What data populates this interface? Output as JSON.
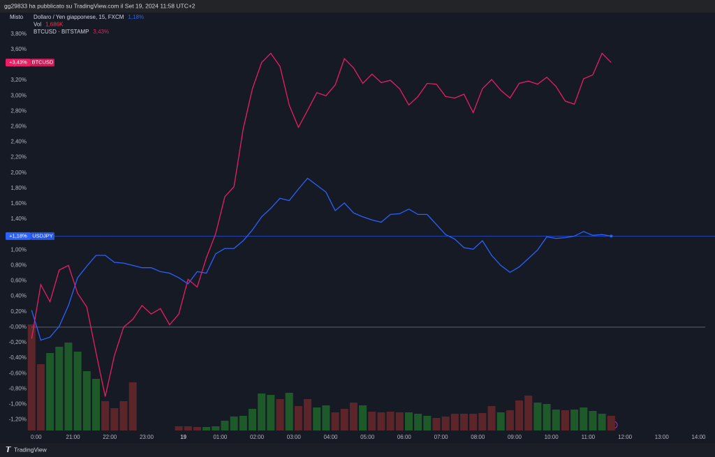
{
  "header": "gg29833 ha pubblicato su TradingView.com il Set 19, 2024 11:58 UTC+2",
  "footer": "TradingView",
  "chart_data": {
    "type": "line",
    "scale_mode": "Misto",
    "x": [
      -0.125,
      0.125,
      0.375,
      0.625,
      0.875,
      1.125,
      1.375,
      1.625,
      1.875,
      2.125,
      2.375,
      2.625,
      2.875,
      3.125,
      3.375,
      3.625,
      3.875,
      4.125,
      4.375,
      4.625,
      4.875,
      5.125,
      5.375,
      5.625,
      5.875,
      6.125,
      6.375,
      6.625,
      6.875,
      7.125,
      7.375,
      7.625,
      7.875,
      8.125,
      8.375,
      8.625,
      8.875,
      9.125,
      9.375,
      9.625,
      9.875,
      10.125,
      10.375,
      10.625,
      10.875,
      11.125,
      11.375,
      11.625,
      11.875,
      12.125,
      12.375,
      12.625,
      12.875,
      13.125,
      13.375,
      13.625,
      13.875,
      14.125,
      14.375,
      14.625,
      14.875,
      15.125,
      15.375,
      15.625
    ],
    "xlim": [
      -0.13,
      18.18
    ],
    "xticks": [
      {
        "value": 0,
        "label": "0:00"
      },
      {
        "value": 1,
        "label": "21:00"
      },
      {
        "value": 2,
        "label": "22:00"
      },
      {
        "value": 3,
        "label": "23:00"
      },
      {
        "value": 4,
        "label": "19"
      },
      {
        "value": 5,
        "label": "01:00"
      },
      {
        "value": 6,
        "label": "02:00"
      },
      {
        "value": 7,
        "label": "03:00"
      },
      {
        "value": 8,
        "label": "04:00"
      },
      {
        "value": 9,
        "label": "05:00"
      },
      {
        "value": 10,
        "label": "06:00"
      },
      {
        "value": 11,
        "label": "07:00"
      },
      {
        "value": 12,
        "label": "08:00"
      },
      {
        "value": 13,
        "label": "09:00"
      },
      {
        "value": 14,
        "label": "10:00"
      },
      {
        "value": 15,
        "label": "11:00"
      },
      {
        "value": 16,
        "label": "12:00"
      },
      {
        "value": 17,
        "label": "13:00"
      },
      {
        "value": 18,
        "label": "14:00"
      }
    ],
    "ylim": [
      -1.34,
      4.06
    ],
    "yticks": [
      {
        "value": 3.8,
        "label": "3,80%"
      },
      {
        "value": 3.6,
        "label": "3,60%"
      },
      {
        "value": 3.4,
        "label": "3,40%"
      },
      {
        "value": 3.2,
        "label": "3,20%"
      },
      {
        "value": 3.0,
        "label": "3,00%"
      },
      {
        "value": 2.8,
        "label": "2,80%"
      },
      {
        "value": 2.6,
        "label": "2,60%"
      },
      {
        "value": 2.4,
        "label": "2,40%"
      },
      {
        "value": 2.2,
        "label": "2,20%"
      },
      {
        "value": 2.0,
        "label": "2,00%"
      },
      {
        "value": 1.8,
        "label": "1,80%"
      },
      {
        "value": 1.6,
        "label": "1,60%"
      },
      {
        "value": 1.4,
        "label": "1,40%"
      },
      {
        "value": 1.0,
        "label": "1,00%"
      },
      {
        "value": 0.8,
        "label": "0,80%"
      },
      {
        "value": 0.6,
        "label": "0,60%"
      },
      {
        "value": 0.4,
        "label": "0,40%"
      },
      {
        "value": 0.2,
        "label": "0,20%"
      },
      {
        "value": 0,
        "label": "-0,00%"
      },
      {
        "value": -0.2,
        "label": "-0,20%"
      },
      {
        "value": -0.4,
        "label": "-0,40%"
      },
      {
        "value": -0.6,
        "label": "-0,60%"
      },
      {
        "value": -0.8,
        "label": "-0,80%"
      },
      {
        "value": -1.0,
        "label": "-1,00%"
      },
      {
        "value": -1.2,
        "label": "-1,20%"
      }
    ],
    "baseline": 0,
    "series": [
      {
        "name": "Dollaro / Yen giapponese, 15, FXCM",
        "legend_value": "1,18%",
        "tag": "USDJPY",
        "last_label": "+1,18%",
        "color": "#2962ff",
        "values": [
          0.22,
          -0.17,
          -0.13,
          0.01,
          0.28,
          0.64,
          0.79,
          0.93,
          0.93,
          0.84,
          0.83,
          0.8,
          0.77,
          0.77,
          0.72,
          0.7,
          0.64,
          0.56,
          0.72,
          0.7,
          0.95,
          1.02,
          1.02,
          1.12,
          1.26,
          1.43,
          1.54,
          1.67,
          1.64,
          1.79,
          1.93,
          1.84,
          1.75,
          1.51,
          1.61,
          1.48,
          1.43,
          1.39,
          1.36,
          1.46,
          1.47,
          1.53,
          1.46,
          1.46,
          1.33,
          1.2,
          1.14,
          1.03,
          1.01,
          1.12,
          0.93,
          0.8,
          0.71,
          0.78,
          0.89,
          1.0,
          1.17,
          1.15,
          1.16,
          1.18,
          1.24,
          1.19,
          1.2,
          1.18
        ]
      },
      {
        "name": "BTCUSD · BITSTAMP",
        "legend_value": "3,43%",
        "tag": "BTCUSD",
        "last_label": "+3,43%",
        "color": "#e91e63",
        "values": [
          -0.15,
          0.55,
          0.33,
          0.74,
          0.8,
          0.44,
          0.26,
          -0.33,
          -0.9,
          -0.37,
          0.0,
          0.1,
          0.28,
          0.17,
          0.24,
          0.03,
          0.17,
          0.62,
          0.52,
          0.9,
          1.21,
          1.69,
          1.82,
          2.57,
          3.09,
          3.43,
          3.55,
          3.38,
          2.88,
          2.59,
          2.81,
          3.04,
          3.0,
          3.14,
          3.48,
          3.36,
          3.16,
          3.28,
          3.17,
          3.2,
          3.09,
          2.88,
          2.99,
          3.16,
          3.15,
          2.99,
          2.97,
          3.02,
          2.78,
          3.09,
          3.21,
          3.07,
          2.97,
          3.16,
          3.19,
          3.15,
          3.24,
          3.12,
          2.93,
          2.89,
          3.22,
          3.27,
          3.55,
          3.43
        ]
      }
    ],
    "volume": {
      "name": "Vol",
      "legend_value": "1,686K",
      "legend_color": "#f23645",
      "vlim": [
        0,
        40000
      ],
      "values": [
        12160,
        7600,
        8880,
        9600,
        10080,
        9040,
        6800,
        5920,
        3360,
        2560,
        3360,
        5520,
        null,
        null,
        null,
        null,
        480,
        480,
        400,
        400,
        480,
        1120,
        1600,
        1680,
        2480,
        4240,
        4080,
        3600,
        4320,
        2800,
        3600,
        2640,
        2880,
        2080,
        2480,
        3200,
        2880,
        2160,
        2080,
        2160,
        2080,
        2080,
        1920,
        1680,
        1440,
        1600,
        1920,
        1920,
        1920,
        2000,
        2800,
        2080,
        2320,
        3440,
        4000,
        3200,
        3040,
        2400,
        2320,
        2400,
        2640,
        2240,
        1920,
        1686
      ],
      "colors": [
        "#5c2529",
        "#5c2529",
        "#1e5a29",
        "#1e5a29",
        "#1e5a29",
        "#1e5a29",
        "#1e5a29",
        "#1e5a29",
        "#5c2529",
        "#5c2529",
        "#5c2529",
        "#5c2529",
        null,
        null,
        null,
        null,
        "#5c2529",
        "#5c2529",
        "#5c2529",
        "#1e5a29",
        "#1e5a29",
        "#1e5a29",
        "#1e5a29",
        "#1e5a29",
        "#1e5a29",
        "#1e5a29",
        "#1e5a29",
        "#5c2529",
        "#1e5a29",
        "#5c2529",
        "#5c2529",
        "#1e5a29",
        "#1e5a29",
        "#5c2529",
        "#5c2529",
        "#5c2529",
        "#1e5a29",
        "#5c2529",
        "#5c2529",
        "#5c2529",
        "#5c2529",
        "#1e5a29",
        "#1e5a29",
        "#1e5a29",
        "#5c2529",
        "#5c2529",
        "#5c2529",
        "#5c2529",
        "#5c2529",
        "#5c2529",
        "#5c2529",
        "#1e5a29",
        "#5c2529",
        "#5c2529",
        "#5c2529",
        "#1e5a29",
        "#1e5a29",
        "#1e5a29",
        "#5c2529",
        "#1e5a29",
        "#1e5a29",
        "#1e5a29",
        "#1e5a29",
        "#5c2529"
      ]
    }
  }
}
